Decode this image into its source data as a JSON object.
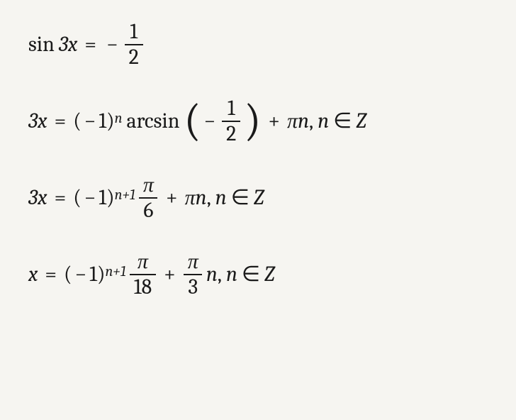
{
  "doc": {
    "background_color": "#f6f5f1",
    "text_color": "#1a1a1a",
    "font_size_pt": 30,
    "font_family": "Cambria Math / serif italic",
    "type": "math-derivation"
  },
  "eq1": {
    "lhs_func": "sin",
    "lhs_arg": "3x",
    "eq": "=",
    "rhs_sign": "−",
    "rhs_num": "1",
    "rhs_den": "2"
  },
  "eq2": {
    "lhs": "3x",
    "eq": "=",
    "base_open": "(",
    "base_sign": "−",
    "base_val": "1",
    "base_close": ")",
    "exp": "n",
    "func": "arcsin",
    "arg_open": "(",
    "arg_sign": "−",
    "arg_num": "1",
    "arg_den": "2",
    "arg_close": ")",
    "plus": "+",
    "term": "πn",
    "comma": ",",
    "cond_var": "n",
    "cond_in": "∈",
    "cond_set": "Z"
  },
  "eq3": {
    "lhs": "3x",
    "eq": "=",
    "base_open": "(",
    "base_sign": "−",
    "base_val": "1",
    "base_close": ")",
    "exp": "n+1",
    "frac_num": "π",
    "frac_den": "6",
    "plus": "+",
    "term": "πn",
    "comma": ",",
    "cond_var": "n",
    "cond_in": "∈",
    "cond_set": "Z"
  },
  "eq4": {
    "lhs": "x",
    "eq": "=",
    "base_open": "(",
    "base_sign": "−",
    "base_val": "1",
    "base_close": ")",
    "exp": "n+1",
    "frac1_num": "π",
    "frac1_den": "18",
    "plus": "+",
    "frac2_num": "π",
    "frac2_den": "3",
    "coeff": "n",
    "comma": ",",
    "cond_var": "n",
    "cond_in": "∈",
    "cond_set": "Z"
  }
}
